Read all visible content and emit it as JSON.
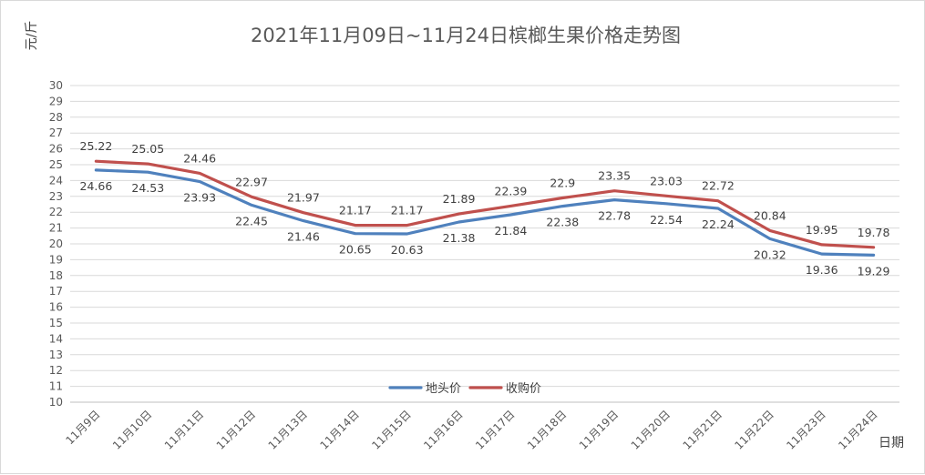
{
  "chart_data": {
    "type": "line",
    "title": "2021年11月09日~11月24日槟榔生果价格走势图",
    "ylabel": "元/斤",
    "xlabel": "日期",
    "ylim": [
      10,
      30
    ],
    "y_ticks": [
      "10",
      "11",
      "12",
      "13",
      "14",
      "15",
      "16",
      "17",
      "18",
      "19",
      "20",
      "21",
      "22",
      "23",
      "24",
      "25",
      "26",
      "27",
      "28",
      "29",
      "30"
    ],
    "grid": true,
    "legend_position": "bottom-center",
    "categories": [
      "11月9日",
      "11月10日",
      "11月11日",
      "11月12日",
      "11月13日",
      "11月14日",
      "11月15日",
      "11月16日",
      "11月17日",
      "11月18日",
      "11月19日",
      "11月20日",
      "11月21日",
      "11月22日",
      "11月23日",
      "11月24日"
    ],
    "series": [
      {
        "name": "地头价",
        "color": "#4f81bd",
        "values": [
          24.66,
          24.53,
          23.93,
          22.45,
          21.46,
          20.65,
          20.63,
          21.38,
          21.84,
          22.38,
          22.78,
          22.54,
          22.24,
          20.32,
          19.36,
          19.29
        ],
        "labels": [
          "24.66",
          "24.53",
          "23.93",
          "22.45",
          "21.46",
          "20.65",
          "20.63",
          "21.38",
          "21.84",
          "22.38",
          "22.78",
          "22.54",
          "22.24",
          "20.32",
          "19.36",
          "19.29"
        ]
      },
      {
        "name": "收购价",
        "color": "#c0504d",
        "values": [
          25.22,
          25.05,
          24.46,
          22.97,
          21.97,
          21.17,
          21.17,
          21.89,
          22.39,
          22.9,
          23.35,
          23.03,
          22.72,
          20.84,
          19.95,
          19.78
        ],
        "labels": [
          "25.22",
          "25.05",
          "24.46",
          "22.97",
          "21.97",
          "21.17",
          "21.17",
          "21.89",
          "22.39",
          "22.9",
          "23.35",
          "23.03",
          "22.72",
          "20.84",
          "19.95",
          "19.78"
        ]
      }
    ]
  }
}
